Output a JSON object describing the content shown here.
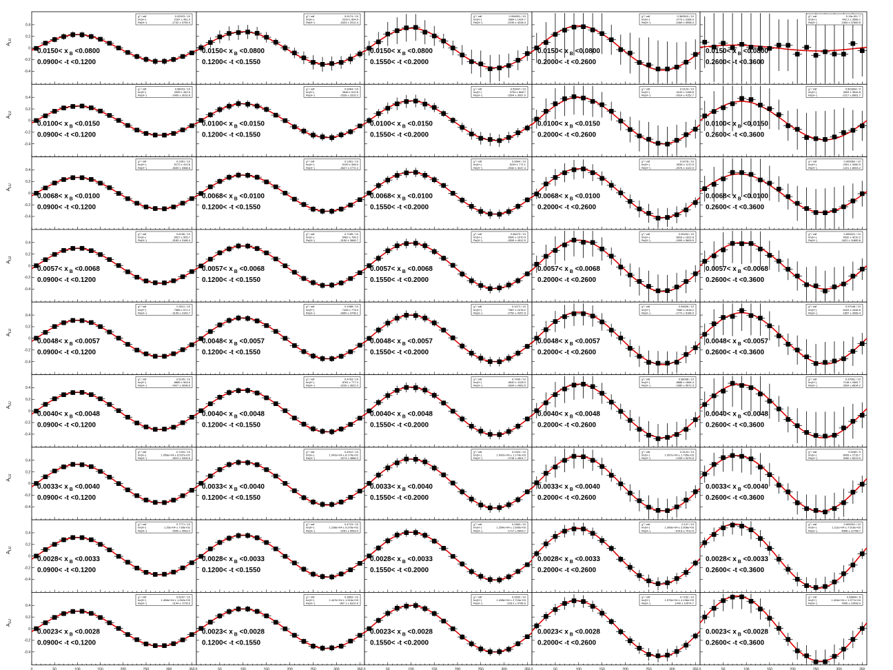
{
  "chart_data": {
    "type": "scatter",
    "description_axis": {
      "ylabel": "A",
      "ylabel_sub": "LU",
      "xlabel": "φ",
      "xlabel_sub": "h",
      "xlabel_unit": "[deg.]",
      "xlim": [
        0,
        360
      ],
      "ylim": [
        -0.6,
        0.6
      ],
      "xticks": [
        0,
        50,
        100,
        150,
        200,
        250,
        300,
        350
      ],
      "yticks": [
        -0.4,
        -0.2,
        0,
        0.2,
        0.4
      ]
    },
    "stat_labels": [
      "χ² / ndf",
      "Im(H~)",
      "Re(H~)"
    ],
    "x_columns": [
      "0.0900< -t <0.1200",
      "0.1200< -t <0.1550",
      "0.1550< -t <0.2000",
      "0.2000< -t <0.2600",
      "0.2600< -t <0.3600"
    ],
    "rows": [
      {
        "label": "0.0150< x",
        "label2": " <0.0800",
        "stats": [
          [
            "0.02923 / 10",
            "2187 ± 461.9",
            "-1742 ± 3759.4"
          ],
          [
            "0.9174 / 10",
            "2229 ± 894.9",
            "-1624 ± 2012.4"
          ],
          [
            "0.996951 / 10",
            "2684 ± 1424.7",
            "-2195 ± 4228.4"
          ],
          [
            "0.360519 / 10",
            "2779 ± 2366.9",
            "-1069 ± 5958.4"
          ],
          [
            "5.13e-05 / 7",
            "442.2 ± 3566.1",
            "1354 ± 37669.5"
          ]
        ],
        "amp": [
          0.23,
          0.28,
          0.34,
          0.38,
          0.05
        ],
        "phase": [
          100,
          100,
          100,
          100,
          75
        ],
        "err": [
          0.04,
          0.09,
          0.17,
          0.35,
          0.6
        ]
      },
      {
        "label": "0.0100< x",
        "label2": " <0.0150",
        "stats": [
          [
            "0.58023 / 10",
            "3395 ± 462.6",
            "-2499 ± 3016.8"
          ],
          [
            "0.9464 / 10",
            "3648 ± 610.8",
            "-2539 ± 3315.2"
          ],
          [
            "0.53947 / 10",
            "3754 ± 868.7",
            "-2504 ± 3067.0"
          ],
          [
            "0.9124 / 10",
            "4100 ± 1268.8",
            "-2414 ± 4152.7"
          ],
          [
            "0.502834 / 9",
            "2653 ± 3644.8",
            "-2217 ± 8961.7"
          ]
        ],
        "amp": [
          0.25,
          0.29,
          0.34,
          0.4,
          0.33
        ],
        "phase": [
          100,
          100,
          100,
          100,
          90
        ],
        "err": [
          0.03,
          0.05,
          0.08,
          0.22,
          0.35
        ]
      },
      {
        "label": "0.0068< x",
        "label2": " <0.0100",
        "stats": [
          [
            "0.2361 / 10",
            "5172 ± 410.6",
            "-3639 ± 3368.6"
          ],
          [
            "0.1361 / 10",
            "5199 ± 556.0",
            "-3627 ± 2772.2"
          ],
          [
            "0.9664 / 10",
            "5249 ± 771.1",
            "-2940 ± 3247.4"
          ],
          [
            "0.9278 / 10",
            "5336 ± 1172.9",
            "-2576 ± 4122.9"
          ],
          [
            "0.905362 / 10",
            "2301 ± 3460.5",
            "1221 ± 8903.2"
          ]
        ],
        "amp": [
          0.27,
          0.31,
          0.36,
          0.42,
          0.33
        ],
        "phase": [
          100,
          100,
          100,
          100,
          85
        ],
        "err": [
          0.03,
          0.04,
          0.06,
          0.12,
          0.3
        ]
      },
      {
        "label": "0.0057< x",
        "label2": " <0.0068",
        "stats": [
          [
            "0.6196 / 10",
            "6527 ± 555.7",
            "-3183 ± 3168.4"
          ],
          [
            "0.7185 / 10",
            "6462 ± 766.2",
            "-3150 ± 3669.7"
          ],
          [
            "0.96073 / 10",
            "6500 ± 1070.9",
            "-2839 ± 4512.9"
          ],
          [
            "0.09494 / 10",
            "6816 ± 1622.8",
            "-1999 ± 5609.9"
          ],
          [
            "0.895201 / 10",
            "4532 ± 4210.2",
            "1821 ± 11889.8"
          ]
        ],
        "amp": [
          0.3,
          0.34,
          0.39,
          0.44,
          0.4
        ],
        "phase": [
          100,
          100,
          100,
          100,
          90
        ],
        "err": [
          0.03,
          0.04,
          0.06,
          0.2,
          0.25
        ]
      },
      {
        "label": "0.0048< x",
        "label2": " <0.0057",
        "stats": [
          [
            "0.3011 / 10",
            "7586 ± 571.2",
            "-3135 ± 3163.7"
          ],
          [
            "0.1988 / 10",
            "7445 ± 776.0",
            "-2890 ± 3708.1"
          ],
          [
            "0.1071 / 10",
            "7667 ± 1078.2",
            "-2752 ± 4257.6"
          ],
          [
            "0.94826 / 10",
            "7680 ± 1618.2",
            "-1772 ± 5186.0"
          ],
          [
            "0.97048 / 10",
            "6404 ± 4448.6",
            "1857 ± 3968.4"
          ]
        ],
        "amp": [
          0.31,
          0.35,
          0.4,
          0.45,
          0.44
        ],
        "phase": [
          100,
          100,
          100,
          100,
          90
        ],
        "err": [
          0.03,
          0.04,
          0.06,
          0.15,
          0.25
        ]
      },
      {
        "label": "0.0040< x",
        "label2": " <0.0048",
        "stats": [
          [
            "0.5105 / 10",
            "8885 ± 563.6",
            "-3427 ± 3098.6"
          ],
          [
            "0.4763 / 10",
            "8761 ± 777.4",
            "-3226 ± 3622.0"
          ],
          [
            "0.7409 / 10",
            "8940 ± 1128.0",
            "-2834 ± 4363.5"
          ],
          [
            "0.58098 / 10",
            "8888 ± 1684.4",
            "-1580 ± 5572.3"
          ],
          [
            "0.37651 / 10",
            "7148 ± 2681.7",
            "2654 ± 8634.2"
          ]
        ],
        "amp": [
          0.32,
          0.36,
          0.41,
          0.46,
          0.46
        ],
        "phase": [
          100,
          100,
          100,
          100,
          85
        ],
        "err": [
          0.03,
          0.04,
          0.06,
          0.18,
          0.3
        ]
      },
      {
        "label": "0.0033< x",
        "label2": " <0.0040",
        "stats": [
          [
            "0.7434 / 10",
            "1.058e+04 ± 6.537e+02",
            "-3513 ± 3326.6"
          ],
          [
            "0.4912 / 10",
            "1.042e+04 ± 8.174e+02",
            "-3274 ± 3868.4"
          ],
          [
            "0.2324 / 10",
            "1.042e+04 ± 1.174e+03",
            "-2746 ± 4501.7"
          ],
          [
            "0.3124 / 10",
            "1.057e+04 ± 1.795e+03",
            "-1339 ± 5476.5"
          ],
          [
            "0.9256 / 9",
            "8499 ± 2716.7",
            "3282 ± 8313.5"
          ]
        ],
        "amp": [
          0.33,
          0.37,
          0.42,
          0.47,
          0.48
        ],
        "phase": [
          100,
          100,
          100,
          100,
          80
        ],
        "err": [
          0.03,
          0.04,
          0.06,
          0.15,
          0.2
        ]
      },
      {
        "label": "0.0028< x",
        "label2": " <0.0033",
        "stats": [
          [
            "0.7771 / 10",
            "1.25e+04 ± 7.65e+02",
            "-2590 ± 4063.2"
          ],
          [
            "0.4723 / 10",
            "1.238e+04 ± 9.376e+02",
            "-2251 ± 5063.0"
          ],
          [
            "0.2863 / 10",
            "1.254e+04 ± 1.595e+03",
            "-1717 ± 5903.7"
          ],
          [
            "0.147 / 10",
            "1.306e+04 ± 2.508e+03",
            "-109.8 ± 7012.6"
          ],
          [
            "0.505391 / 10",
            "1.111e+04 ± 7.916e+03",
            "4858 ± 12758.7"
          ]
        ],
        "amp": [
          0.32,
          0.36,
          0.41,
          0.48,
          0.55
        ],
        "phase": [
          100,
          100,
          100,
          95,
          75
        ],
        "err": [
          0.03,
          0.04,
          0.05,
          0.08,
          0.12
        ]
      },
      {
        "label": "0.0023< x",
        "label2": " <0.0028",
        "stats": [
          [
            "0.5247 / 10",
            "1.458e+04 ± 1.262e+03",
            "-1144 ± 7278.5"
          ],
          [
            "0.3853 / 10",
            "1.447e+04 ± 1.916e+03",
            "-987.1 ± 8310.6"
          ],
          [
            "0.2692 / 10",
            "1.498e+04 ± 2.715e+03",
            "-228.2 ± 9766.6"
          ],
          [
            "0.7152 / 10",
            "1.575e+04 ± 4.136e+03",
            "1440 ± 10574.7"
          ],
          [
            "0.58848 / 8",
            "1.404e+04 ± 1.377e+04",
            "7846 ± 10508.9"
          ]
        ],
        "amp": [
          0.3,
          0.34,
          0.4,
          0.48,
          0.56
        ],
        "phase": [
          100,
          100,
          100,
          95,
          80
        ],
        "err": [
          0.03,
          0.04,
          0.05,
          0.08,
          0.15
        ]
      }
    ]
  }
}
